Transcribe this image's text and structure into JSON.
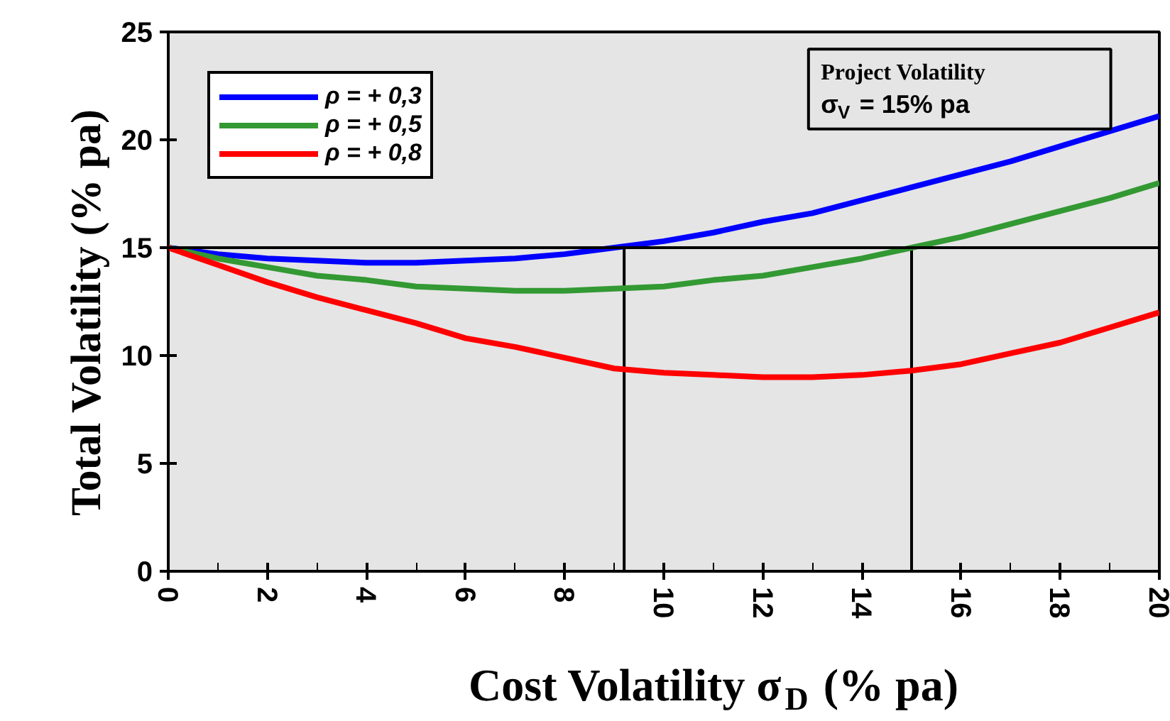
{
  "chart_data": {
    "type": "line",
    "xlabel": "Cost Volatility σ$_{D}$ (% pa)",
    "ylabel": "Total  Volatility  (% pa)",
    "x": [
      0,
      1,
      2,
      3,
      4,
      5,
      6,
      7,
      8,
      9,
      10,
      11,
      12,
      13,
      14,
      15,
      16,
      17,
      18,
      19,
      20
    ],
    "series": [
      {
        "name": "ρ = + 0,3",
        "color": "#0000ff",
        "values": [
          15,
          14.7,
          14.5,
          14.4,
          14.3,
          14.3,
          14.4,
          14.5,
          14.7,
          15.0,
          15.3,
          15.7,
          16.2,
          16.6,
          17.2,
          17.8,
          18.4,
          19.0,
          19.7,
          20.4,
          21.1
        ]
      },
      {
        "name": "ρ = + 0,5",
        "color": "#339933",
        "values": [
          15,
          14.5,
          14.1,
          13.7,
          13.5,
          13.2,
          13.1,
          13.0,
          13.0,
          13.1,
          13.2,
          13.5,
          13.7,
          14.1,
          14.5,
          15.0,
          15.5,
          16.1,
          16.7,
          17.3,
          18.0
        ]
      },
      {
        "name": "ρ = + 0,8",
        "color": "#ff0000",
        "values": [
          15,
          14.2,
          13.4,
          12.7,
          12.1,
          11.5,
          10.8,
          10.4,
          9.9,
          9.4,
          9.2,
          9.1,
          9.0,
          9.0,
          9.1,
          9.3,
          9.6,
          10.1,
          10.6,
          11.3,
          12.0
        ]
      }
    ],
    "xlim": [
      0,
      20
    ],
    "xticks": [
      0,
      2,
      4,
      6,
      8,
      10,
      12,
      14,
      16,
      18,
      20
    ],
    "ylim": [
      0,
      25
    ],
    "yticks": [
      0,
      5,
      10,
      15,
      20,
      25
    ],
    "ref_lines": [
      {
        "axis": "y",
        "value": 15,
        "color": "#000000"
      },
      {
        "axis": "x",
        "value": 9.2,
        "color": "#000000"
      },
      {
        "axis": "x",
        "value": 15.0,
        "color": "#000000"
      }
    ],
    "annotations": [
      "Project  Volatility",
      "σ$_{V}$ = 15% pa"
    ],
    "grid": false,
    "legend": "top left",
    "marker": "none",
    "line_style": "solid"
  }
}
